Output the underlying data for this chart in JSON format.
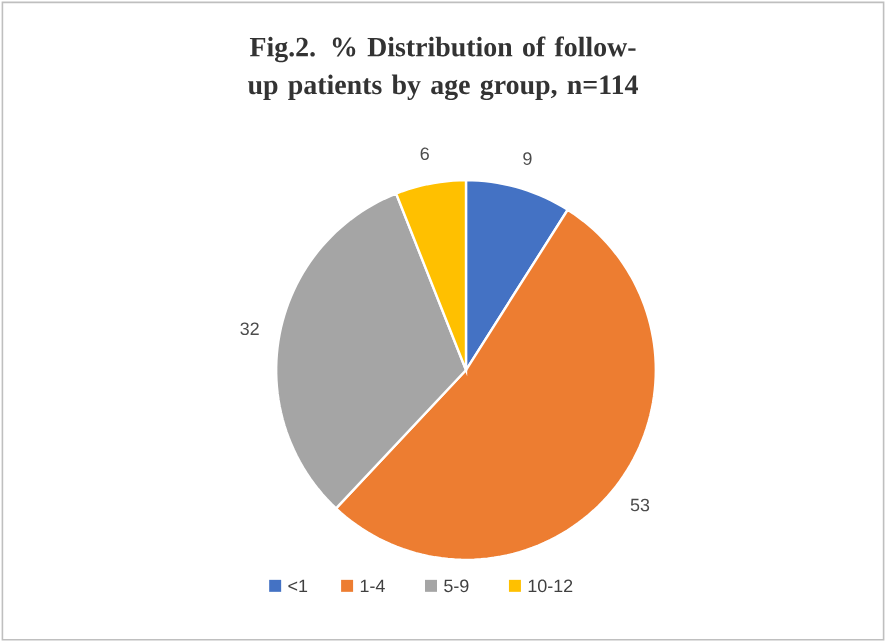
{
  "chart_data": {
    "type": "pie",
    "title": "Fig.2. % Distribution of follow-up patients by age group, n=114",
    "categories": [
      "<1",
      "1-4",
      "5-9",
      "10-12"
    ],
    "values": [
      9,
      53,
      32,
      6
    ],
    "colors": [
      "#4472c4",
      "#ed7d31",
      "#a5a5a5",
      "#ffc000"
    ],
    "data_labels": true,
    "legend": "bottom"
  }
}
